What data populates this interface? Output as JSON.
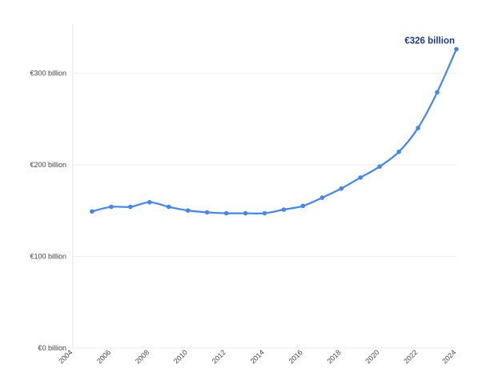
{
  "chart_data": {
    "type": "line",
    "x": [
      2005,
      2006,
      2007,
      2008,
      2009,
      2010,
      2011,
      2012,
      2013,
      2014,
      2015,
      2016,
      2017,
      2018,
      2019,
      2020,
      2021,
      2022,
      2023,
      2024
    ],
    "series": [
      {
        "values": [
          149,
          154,
          154,
          159,
          154,
          150,
          148,
          147,
          147,
          147,
          151,
          155,
          164,
          174,
          186,
          198,
          214,
          240,
          279,
          326
        ]
      }
    ],
    "xlim": [
      2004,
      2024
    ],
    "ylim": [
      0,
      350
    ],
    "x_ticks": [
      2004,
      2006,
      2008,
      2010,
      2012,
      2014,
      2016,
      2018,
      2020,
      2022,
      2024
    ],
    "x_tick_labels": [
      "2004",
      "2006",
      "2008",
      "2010",
      "2012",
      "2014",
      "2016",
      "2018",
      "2020",
      "2022",
      "2024"
    ],
    "y_ticks": [
      0,
      100,
      200,
      300
    ],
    "y_tick_labels": [
      "€0 billion",
      "€100 billion",
      "€200 billion",
      "€300 billion"
    ],
    "annotation": {
      "text": "€326 billion",
      "x": 2024,
      "y": 326
    },
    "grid": true,
    "colors": {
      "line": "#4285f4",
      "annotation": "#1a3a9c",
      "grid": "#eeeeee",
      "axis": "#e6e6e6"
    }
  }
}
